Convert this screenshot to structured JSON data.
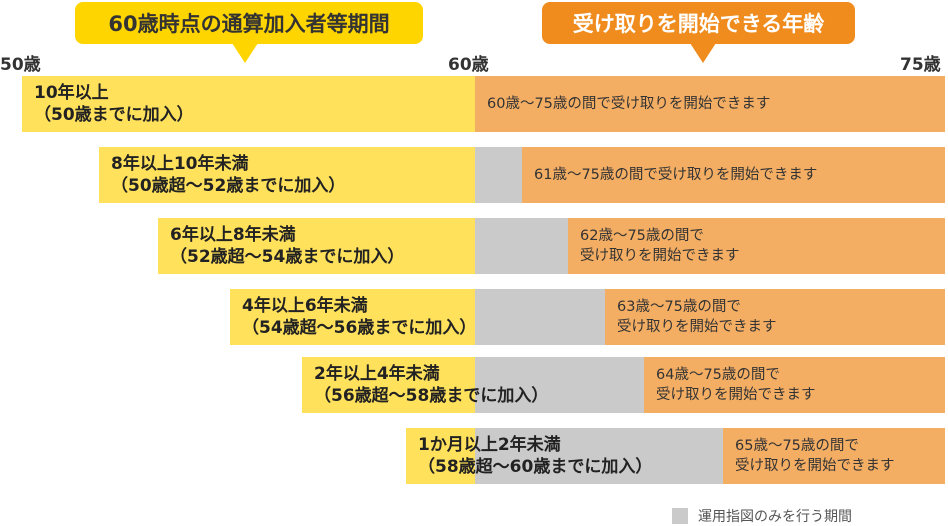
{
  "headers": {
    "left": "60歳時点の通算加入者等期間",
    "right": "受け取りを開始できる年齢"
  },
  "axis": {
    "start": "50歳",
    "mid": "60歳",
    "end": "75歳"
  },
  "rows": [
    {
      "period": "10年以上",
      "condition": "（50歳までに加入）",
      "start_line1": "60歳～75歳の間で受け取りを開始できます",
      "start_line2": ""
    },
    {
      "period": "8年以上10年未満",
      "condition": "（50歳超～52歳までに加入）",
      "start_line1": "61歳～75歳の間で受け取りを開始できます",
      "start_line2": ""
    },
    {
      "period": "6年以上8年未満",
      "condition": "（52歳超～54歳までに加入）",
      "start_line1": "62歳～75歳の間で",
      "start_line2": "受け取りを開始できます"
    },
    {
      "period": "4年以上6年未満",
      "condition": "（54歳超～56歳までに加入）",
      "start_line1": "63歳～75歳の間で",
      "start_line2": "受け取りを開始できます"
    },
    {
      "period": "2年以上4年未満",
      "condition": "（56歳超～58歳までに加入）",
      "start_line1": "64歳～75歳の間で",
      "start_line2": "受け取りを開始できます"
    },
    {
      "period": "1か月以上2年未満",
      "condition": "（58歳超～60歳までに加入）",
      "start_line1": "65歳～75歳の間で",
      "start_line2": "受け取りを開始できます"
    }
  ],
  "legend": {
    "label": "運用指図のみを行う期間"
  },
  "colors": {
    "header_yellow": "#FFD500",
    "header_orange": "#F08C1E",
    "bar_yellow": "#FFE15C",
    "bar_gray": "#CACACA",
    "bar_orange": "#F4AE64"
  }
}
